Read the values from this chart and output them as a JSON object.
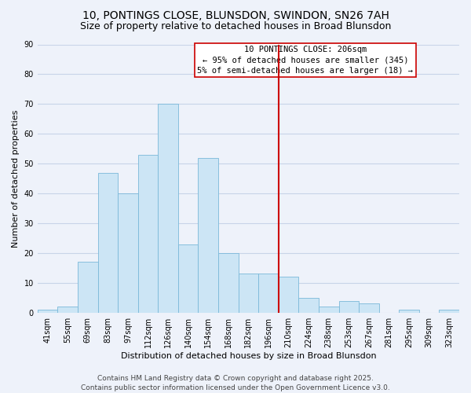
{
  "title": "10, PONTINGS CLOSE, BLUNSDON, SWINDON, SN26 7AH",
  "subtitle": "Size of property relative to detached houses in Broad Blunsdon",
  "xlabel": "Distribution of detached houses by size in Broad Blunsdon",
  "ylabel": "Number of detached properties",
  "bin_labels": [
    "41sqm",
    "55sqm",
    "69sqm",
    "83sqm",
    "97sqm",
    "112sqm",
    "126sqm",
    "140sqm",
    "154sqm",
    "168sqm",
    "182sqm",
    "196sqm",
    "210sqm",
    "224sqm",
    "238sqm",
    "253sqm",
    "267sqm",
    "281sqm",
    "295sqm",
    "309sqm",
    "323sqm"
  ],
  "bar_values": [
    1,
    2,
    17,
    47,
    40,
    53,
    70,
    23,
    52,
    20,
    13,
    13,
    12,
    5,
    2,
    4,
    3,
    0,
    1,
    0,
    1
  ],
  "bar_color": "#cce5f5",
  "bar_edgecolor": "#7ab8d9",
  "vline_color": "#cc0000",
  "vline_index": 12,
  "annotation_title": "10 PONTINGS CLOSE: 206sqm",
  "annotation_line1": "← 95% of detached houses are smaller (345)",
  "annotation_line2": "5% of semi-detached houses are larger (18) →",
  "annotation_box_facecolor": "#ffffff",
  "annotation_box_edgecolor": "#cc0000",
  "ylim": [
    0,
    90
  ],
  "yticks": [
    0,
    10,
    20,
    30,
    40,
    50,
    60,
    70,
    80,
    90
  ],
  "footer1": "Contains HM Land Registry data © Crown copyright and database right 2025.",
  "footer2": "Contains public sector information licensed under the Open Government Licence v3.0.",
  "bg_color": "#eef2fa",
  "grid_color": "#c8d4e8",
  "title_fontsize": 10,
  "subtitle_fontsize": 9,
  "axis_label_fontsize": 8,
  "tick_fontsize": 7,
  "annotation_fontsize": 7.5,
  "footer_fontsize": 6.5
}
